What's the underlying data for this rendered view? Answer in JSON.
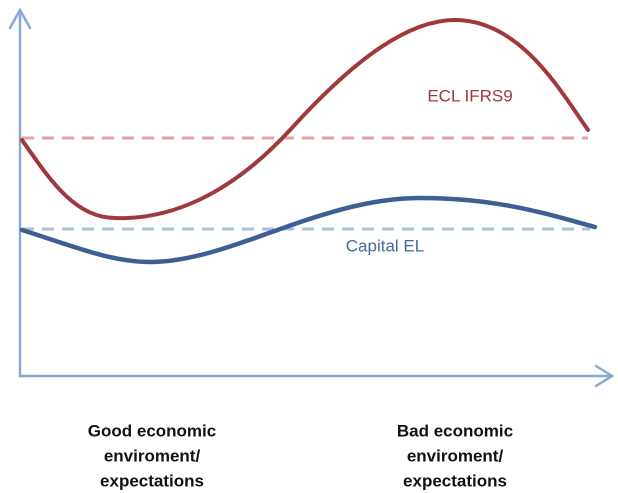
{
  "curve_labels": {
    "ecl": "ECL IFRS9",
    "capital": "Capital EL"
  },
  "x_labels": [
    [
      "Good economic",
      "enviroment/",
      "expectations"
    ],
    [
      "Bad economic",
      "enviroment/",
      "expectations"
    ]
  ]
}
